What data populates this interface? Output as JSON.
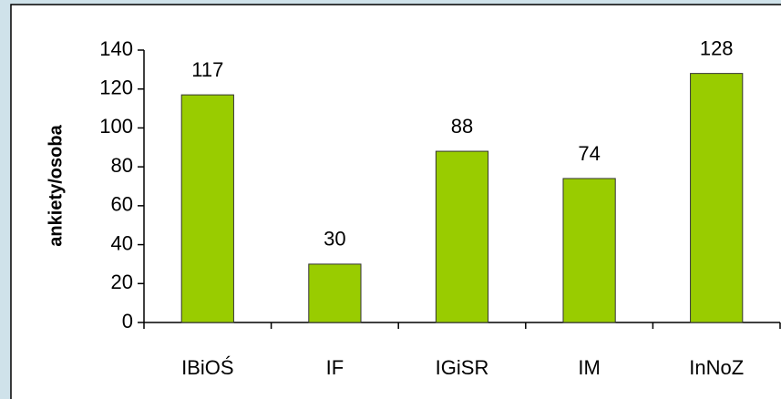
{
  "chart_data": {
    "type": "bar",
    "y_label": "ankiety/osoba",
    "categories": [
      "IBiOŚ",
      "IF",
      "IGiSR",
      "IM",
      "InNoZ"
    ],
    "values": [
      117,
      30,
      88,
      74,
      128
    ],
    "color": "#99cc00",
    "ylim": [
      0,
      140
    ],
    "yticks": [
      0,
      20,
      40,
      60,
      80,
      100,
      120,
      140
    ],
    "grid": false
  }
}
